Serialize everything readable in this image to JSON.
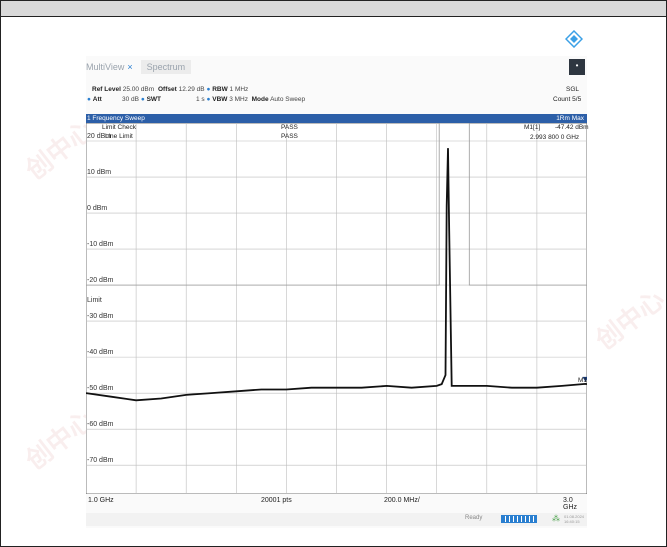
{
  "tabs": [
    {
      "label": "MultiView",
      "close": "×"
    },
    {
      "label": "Spectrum"
    }
  ],
  "toolbar_button": "•",
  "settings": {
    "ref_level_label": "Ref Level",
    "ref_level_value": "25.00 dBm",
    "offset_label": "Offset",
    "offset_value": "12.29 dB",
    "rbw_label": "RBW",
    "rbw_value": "1 MHz",
    "att_label": "Att",
    "att_value": "30 dB",
    "swt_label": "SWT",
    "swt_value": "1 s",
    "vbw_label": "VBW",
    "vbw_value": "3 MHz",
    "mode_label": "Mode",
    "mode_value": "Auto Sweep",
    "sweep_type": "SGL",
    "count": "Count 5/5"
  },
  "sweep_bar": {
    "title": "1 Frequency Sweep",
    "trace_mode": "1Rm Max"
  },
  "limit_check": {
    "label": "Limit Check",
    "result": "PASS",
    "line_label": "Line Limit",
    "line_result": "PASS"
  },
  "marker": {
    "name": "M1[1]",
    "level": "-47.42 dBm",
    "freq": "2.993 800 0 GHz",
    "tag": "M1"
  },
  "limit_label": "Limit",
  "y_axis_labels": [
    "20 dBm",
    "10 dBm",
    "0 dBm",
    "-10 dBm",
    "-20 dBm",
    "-30 dBm",
    "-40 dBm",
    "-50 dBm",
    "-60 dBm",
    "-70 dBm"
  ],
  "x_axis": {
    "start": "1.0 GHz",
    "points": "20001 pts",
    "span_per_div": "200.0 MHz/",
    "stop": "3.0 GHz"
  },
  "status": {
    "ready": "Ready",
    "date": "01.08.2024",
    "time": "16:40:15"
  },
  "watermark_text": "创中心",
  "chart_data": {
    "type": "line",
    "x_unit": "GHz",
    "y_unit": "dBm",
    "xlim": [
      1.0,
      3.0
    ],
    "ylim": [
      -78,
      25
    ],
    "y_ticks": [
      20,
      10,
      0,
      -10,
      -20,
      -30,
      -40,
      -50,
      -60,
      -70
    ],
    "grid": true,
    "series": [
      {
        "name": "1Rm Max",
        "x": [
          1.0,
          1.1,
          1.2,
          1.3,
          1.4,
          1.5,
          1.6,
          1.7,
          1.8,
          1.9,
          2.0,
          2.1,
          2.2,
          2.3,
          2.4,
          2.42,
          2.435,
          2.44,
          2.445,
          2.45,
          2.46,
          2.5,
          2.6,
          2.7,
          2.8,
          2.9,
          2.994,
          3.0
        ],
        "y": [
          -50.0,
          -51.0,
          -52.0,
          -51.5,
          -50.5,
          -50.0,
          -49.5,
          -49.0,
          -49.0,
          -48.5,
          -48.5,
          -48.5,
          -48.0,
          -48.5,
          -48.0,
          -47.5,
          -45.0,
          2.0,
          18.0,
          -5.0,
          -48.0,
          -48.0,
          -48.0,
          -48.5,
          -48.5,
          -48.0,
          -47.42,
          -47.5
        ]
      }
    ],
    "limit_line": {
      "name": "Limit",
      "x": [
        1.0,
        2.41,
        2.41,
        2.53,
        2.53,
        3.0
      ],
      "y": [
        -20.0,
        -20.0,
        25.0,
        25.0,
        -20.0,
        -20.0
      ]
    }
  }
}
